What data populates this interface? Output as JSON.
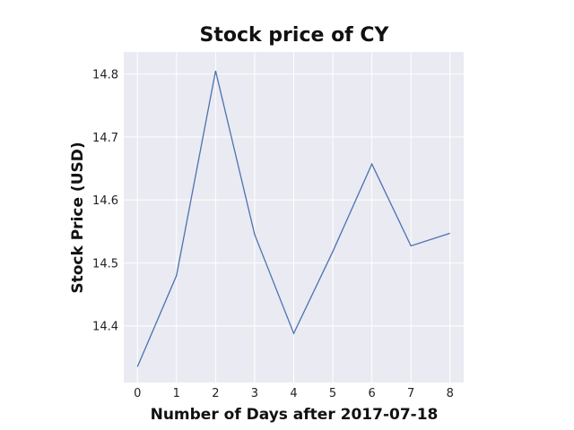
{
  "chart_data": {
    "type": "line",
    "title": "Stock price of CY",
    "xlabel": "Number of Days after 2017-07-18",
    "ylabel": "Stock Price (USD)",
    "x": [
      0,
      1,
      2,
      3,
      4,
      5,
      6,
      7,
      8
    ],
    "series": [
      {
        "values": [
          14.335,
          14.48,
          14.805,
          14.545,
          14.388,
          14.518,
          14.657,
          14.527,
          14.547
        ]
      }
    ],
    "x_ticks": [
      "0",
      "1",
      "2",
      "3",
      "4",
      "5",
      "6",
      "7",
      "8"
    ],
    "y_ticks": [
      "14.4",
      "14.5",
      "14.6",
      "14.7",
      "14.8"
    ],
    "xlim": [
      -0.35,
      8.35
    ],
    "ylim": [
      14.31,
      14.835
    ],
    "grid": true,
    "colors": {
      "line": "#4c72b0",
      "plot_background": "#eaeaf2",
      "grid": "#ffffff"
    }
  }
}
